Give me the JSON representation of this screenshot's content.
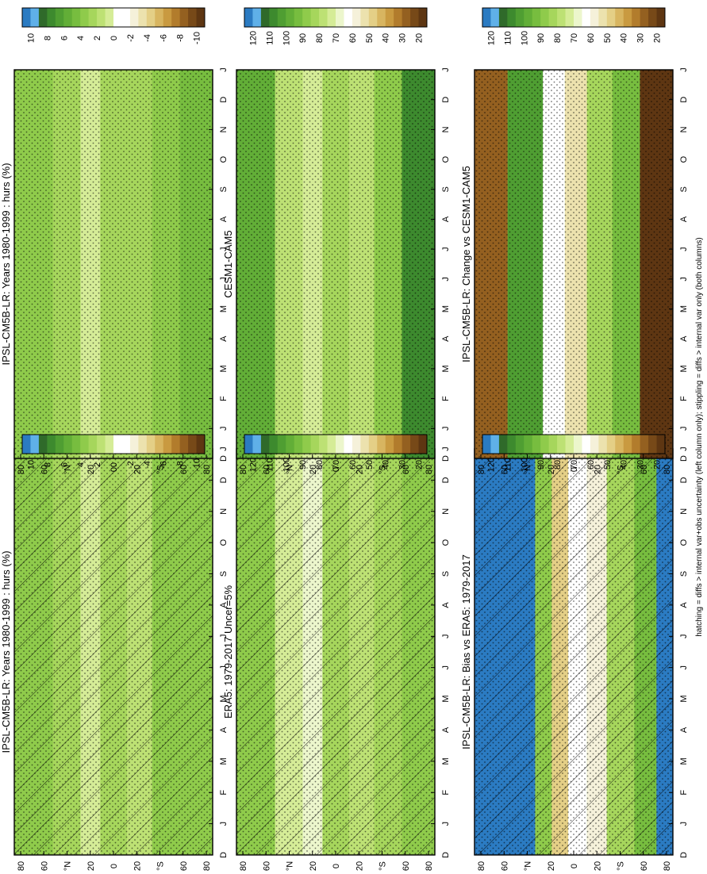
{
  "footnote": "hatching = diffs > internal var+obs uncertainty (left column only); stippling = diffs > internal var only (both columns)",
  "months": [
    "D",
    "J",
    "F",
    "M",
    "A",
    "M",
    "J",
    "J",
    "A",
    "S",
    "O",
    "N",
    "D",
    "J"
  ],
  "lat_ticks": [
    "80",
    "60",
    "°N",
    "20",
    "0",
    "20",
    "°S",
    "60",
    "80"
  ],
  "abs_colorbar": {
    "labels": [
      "120",
      "110",
      "100",
      "90",
      "80",
      "70",
      "60",
      "50",
      "40",
      "30",
      "20"
    ],
    "colors": [
      "#2b7bc2",
      "#5fb0e8",
      "#2f6a2a",
      "#3d8a2e",
      "#4f9e32",
      "#62ae37",
      "#77bd3f",
      "#8fcb4b",
      "#a6d65c",
      "#bde174",
      "#d5ec97",
      "#ecf6cc",
      "#ffffff",
      "#f5f1da",
      "#ece2ae",
      "#e4cf86",
      "#d8b560",
      "#c99a40",
      "#b27c2c",
      "#946020",
      "#774918",
      "#5e3612"
    ]
  },
  "diff_colorbar": {
    "labels": [
      "10",
      "8",
      "6",
      "4",
      "2",
      "0",
      "-2",
      "-4",
      "-6",
      "-8",
      "-10"
    ],
    "colors": [
      "#2b7bc2",
      "#5fb0e8",
      "#2f6a2a",
      "#3d8a2e",
      "#4f9e32",
      "#62ae37",
      "#77bd3f",
      "#8fcb4b",
      "#a6d65c",
      "#bde174",
      "#d5ec97",
      "#ffffff",
      "#ffffff",
      "#f5f1da",
      "#ece2ae",
      "#e4cf86",
      "#d8b560",
      "#c99a40",
      "#b27c2c",
      "#946020",
      "#774918",
      "#5e3612"
    ]
  },
  "chart_data": [
    {
      "type": "heatmap",
      "title": "IPSL-CM5B-LR: Years 1980-1999 : hurs (%)",
      "x_months": [
        "D",
        "J",
        "F",
        "M",
        "A",
        "M",
        "J",
        "J",
        "A",
        "S",
        "O",
        "N",
        "D",
        "J"
      ],
      "y_ticks": [
        "80",
        "60",
        "°N",
        "20",
        "0",
        "20",
        "°S",
        "60",
        "80"
      ],
      "colorbar": "abs",
      "hatching": true,
      "stippling": true,
      "bands": [
        {
          "lat_min": -90,
          "lat_max": -60,
          "value": 88
        },
        {
          "lat_min": -60,
          "lat_max": -35,
          "value": 84
        },
        {
          "lat_min": -35,
          "lat_max": -12,
          "value": 78
        },
        {
          "lat_min": -12,
          "lat_max": 12,
          "value": 82
        },
        {
          "lat_min": 12,
          "lat_max": 30,
          "value": 74
        },
        {
          "lat_min": 30,
          "lat_max": 55,
          "value": 80
        },
        {
          "lat_min": 55,
          "lat_max": 90,
          "value": 88
        }
      ]
    },
    {
      "type": "heatmap",
      "title": "IPSL-CM5B-LR: Years 1980-1999 : hurs (%)",
      "x_months": [
        "D",
        "J",
        "F",
        "M",
        "A",
        "M",
        "J",
        "J",
        "A",
        "S",
        "O",
        "N",
        "D",
        "J"
      ],
      "y_ticks": [
        "80",
        "60",
        "°N",
        "20",
        "0",
        "20",
        "°S",
        "60",
        "80"
      ],
      "colorbar": "abs",
      "hatching": false,
      "stippling": true,
      "bands": [
        {
          "lat_min": -90,
          "lat_max": -60,
          "value": 90
        },
        {
          "lat_min": -60,
          "lat_max": -35,
          "value": 85
        },
        {
          "lat_min": -35,
          "lat_max": -12,
          "value": 80
        },
        {
          "lat_min": -12,
          "lat_max": 12,
          "value": 82
        },
        {
          "lat_min": 12,
          "lat_max": 30,
          "value": 74
        },
        {
          "lat_min": 30,
          "lat_max": 55,
          "value": 80
        },
        {
          "lat_min": 55,
          "lat_max": 90,
          "value": 86
        }
      ]
    },
    {
      "type": "heatmap",
      "title": "ERA5: 1979-2017 Uncer=5%",
      "x_months": [
        "D",
        "J",
        "F",
        "M",
        "A",
        "M",
        "J",
        "J",
        "A",
        "S",
        "O",
        "N",
        "D",
        "J"
      ],
      "y_ticks": [
        "80",
        "60",
        "°N",
        "20",
        "0",
        "20",
        "°S",
        "60",
        "80"
      ],
      "colorbar": "abs",
      "hatching": true,
      "stippling": true,
      "bands": [
        {
          "lat_min": -90,
          "lat_max": -60,
          "value": 88
        },
        {
          "lat_min": -60,
          "lat_max": -35,
          "value": 82
        },
        {
          "lat_min": -35,
          "lat_max": -12,
          "value": 78
        },
        {
          "lat_min": -12,
          "lat_max": 12,
          "value": 80
        },
        {
          "lat_min": 12,
          "lat_max": 30,
          "value": 66
        },
        {
          "lat_min": 30,
          "lat_max": 55,
          "value": 74
        },
        {
          "lat_min": 55,
          "lat_max": 90,
          "value": 84
        }
      ]
    },
    {
      "type": "heatmap",
      "title": "CESM1-CAM5",
      "x_months": [
        "D",
        "J",
        "F",
        "M",
        "A",
        "M",
        "J",
        "J",
        "A",
        "S",
        "O",
        "N",
        "D",
        "J"
      ],
      "y_ticks": [
        "80",
        "60",
        "°N",
        "20",
        "0",
        "20",
        "°S",
        "60",
        "80"
      ],
      "colorbar": "abs",
      "hatching": false,
      "stippling": true,
      "bands": [
        {
          "lat_min": -90,
          "lat_max": -60,
          "value": 104
        },
        {
          "lat_min": -60,
          "lat_max": -35,
          "value": 88
        },
        {
          "lat_min": -35,
          "lat_max": -12,
          "value": 78
        },
        {
          "lat_min": -12,
          "lat_max": 12,
          "value": 82
        },
        {
          "lat_min": 12,
          "lat_max": 30,
          "value": 72
        },
        {
          "lat_min": 30,
          "lat_max": 55,
          "value": 78
        },
        {
          "lat_min": 55,
          "lat_max": 90,
          "value": 96
        }
      ]
    },
    {
      "type": "heatmap",
      "title": "IPSL-CM5B-LR: Bias vs ERA5: 1979-2017",
      "x_months": [
        "D",
        "J",
        "F",
        "M",
        "A",
        "M",
        "J",
        "J",
        "A",
        "S",
        "O",
        "N",
        "D",
        "J"
      ],
      "y_ticks": [
        "80",
        "60",
        "°N",
        "20",
        "0",
        "20",
        "°S",
        "60",
        "80"
      ],
      "colorbar": "diff",
      "hatching": true,
      "stippling": true,
      "bands": [
        {
          "lat_min": -90,
          "lat_max": -75,
          "value": 12
        },
        {
          "lat_min": -75,
          "lat_max": -55,
          "value": 4
        },
        {
          "lat_min": -55,
          "lat_max": -30,
          "value": 2
        },
        {
          "lat_min": -30,
          "lat_max": -12,
          "value": -2
        },
        {
          "lat_min": -12,
          "lat_max": 5,
          "value": 0
        },
        {
          "lat_min": 5,
          "lat_max": 20,
          "value": -4
        },
        {
          "lat_min": 20,
          "lat_max": 35,
          "value": 3
        },
        {
          "lat_min": 35,
          "lat_max": 90,
          "value": 12
        }
      ]
    },
    {
      "type": "heatmap",
      "title": "IPSL-CM5B-LR: Change vs CESM1-CAM5",
      "x_months": [
        "D",
        "J",
        "F",
        "M",
        "A",
        "M",
        "J",
        "J",
        "A",
        "S",
        "O",
        "N",
        "D",
        "J"
      ],
      "y_ticks": [
        "80",
        "60",
        "°N",
        "20",
        "0",
        "20",
        "°S",
        "60",
        "80"
      ],
      "colorbar": "diff",
      "hatching": false,
      "stippling": true,
      "bands": [
        {
          "lat_min": -90,
          "lat_max": -60,
          "value": -10
        },
        {
          "lat_min": -60,
          "lat_max": -35,
          "value": 4
        },
        {
          "lat_min": -35,
          "lat_max": -12,
          "value": 2
        },
        {
          "lat_min": -12,
          "lat_max": 8,
          "value": -3
        },
        {
          "lat_min": 8,
          "lat_max": 28,
          "value": 0
        },
        {
          "lat_min": 28,
          "lat_max": 60,
          "value": 6
        },
        {
          "lat_min": 60,
          "lat_max": 90,
          "value": -8
        }
      ]
    }
  ]
}
